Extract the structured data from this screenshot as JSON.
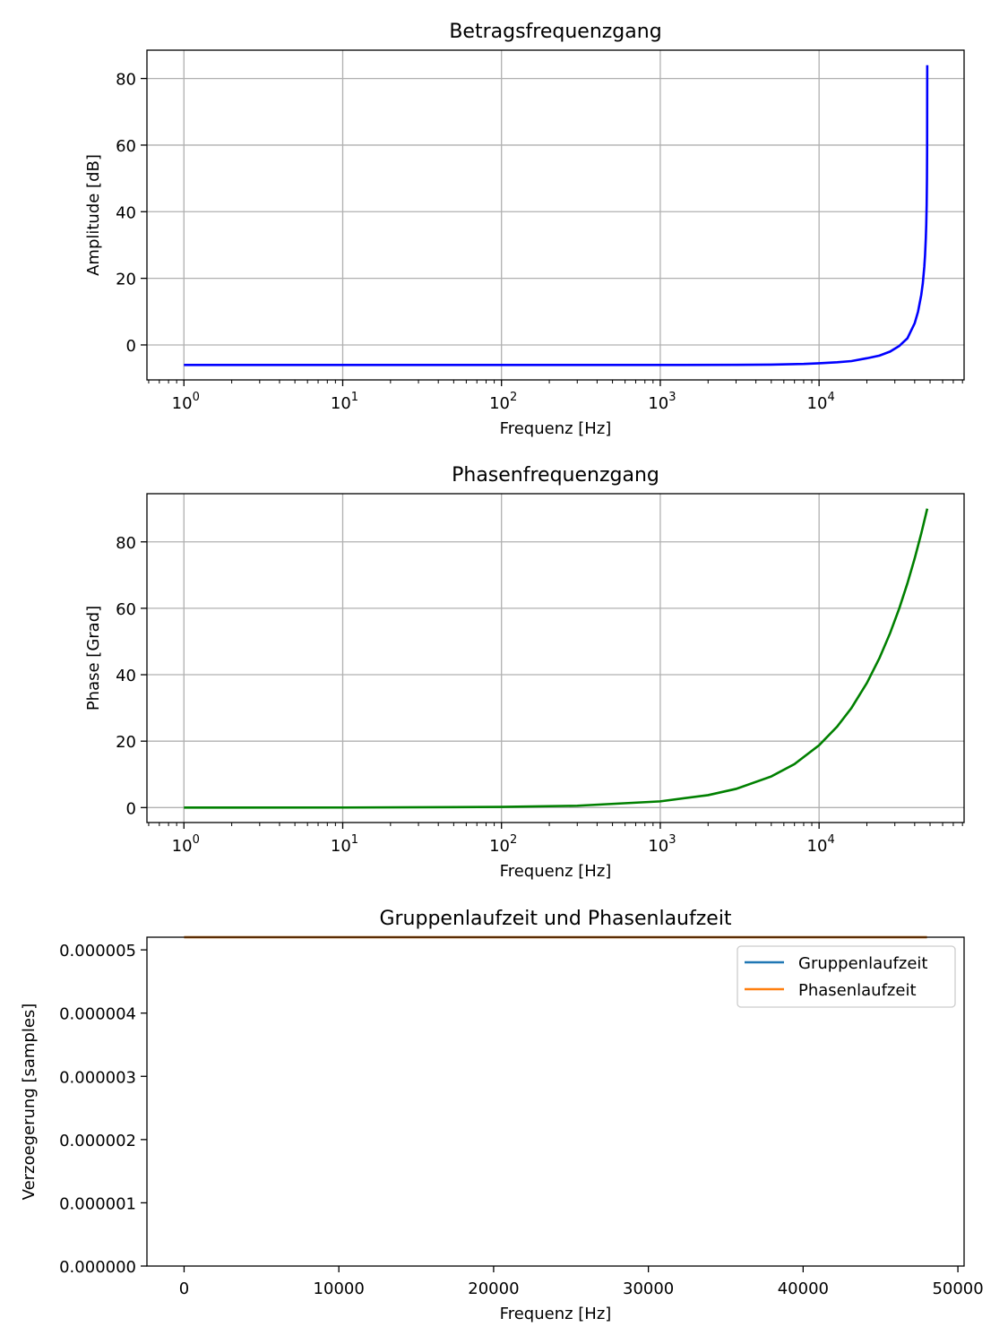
{
  "chart_data": [
    {
      "type": "line",
      "title": "Betragsfrequenzgang",
      "xlabel": "Frequenz [Hz]",
      "ylabel": "Amplitude [dB]",
      "xscale": "log",
      "grid": true,
      "xticks": [
        1,
        10,
        100,
        1000,
        10000
      ],
      "xtick_labels": [
        {
          "base": "10",
          "exp": "0"
        },
        {
          "base": "10",
          "exp": "1"
        },
        {
          "base": "10",
          "exp": "2"
        },
        {
          "base": "10",
          "exp": "3"
        },
        {
          "base": "10",
          "exp": "4"
        }
      ],
      "yticks": [
        0,
        20,
        40,
        60,
        80
      ],
      "ytick_labels": [
        "0",
        "20",
        "40",
        "60",
        "80"
      ],
      "xlim": [
        0.585,
        81900
      ],
      "ylim": [
        -10.5,
        88.5
      ],
      "series": [
        {
          "color": "#0000ff",
          "x": [
            1,
            10,
            100,
            1000,
            3000,
            5000,
            8000,
            10000,
            13000,
            16000,
            20000,
            24000,
            28000,
            32000,
            36000,
            40000,
            42000,
            44000,
            45000,
            46000,
            46500,
            47000,
            47300,
            47600,
            47800,
            47900,
            48000
          ],
          "y": [
            -6.02,
            -6.02,
            -6.02,
            -6.01,
            -5.98,
            -5.9,
            -5.7,
            -5.5,
            -5.2,
            -4.85,
            -4.0,
            -3.2,
            -2.0,
            -0.3,
            2.0,
            6.5,
            10.0,
            15.0,
            18.5,
            23.5,
            27.0,
            32.0,
            36.0,
            42.0,
            50.0,
            58.0,
            84.0
          ]
        }
      ]
    },
    {
      "type": "line",
      "title": "Phasenfrequenzgang",
      "xlabel": "Frequenz [Hz]",
      "ylabel": "Phase [Grad]",
      "xscale": "log",
      "grid": true,
      "xticks": [
        1,
        10,
        100,
        1000,
        10000
      ],
      "xtick_labels": [
        {
          "base": "10",
          "exp": "0"
        },
        {
          "base": "10",
          "exp": "1"
        },
        {
          "base": "10",
          "exp": "2"
        },
        {
          "base": "10",
          "exp": "3"
        },
        {
          "base": "10",
          "exp": "4"
        }
      ],
      "yticks": [
        0,
        20,
        40,
        60,
        80
      ],
      "ytick_labels": [
        "0",
        "20",
        "40",
        "60",
        "80"
      ],
      "xlim": [
        0.585,
        81900
      ],
      "ylim": [
        -4.5,
        94.5
      ],
      "series": [
        {
          "color": "#008000",
          "x": [
            1,
            10,
            100,
            300,
            1000,
            2000,
            3000,
            5000,
            7000,
            10000,
            13000,
            16000,
            20000,
            24000,
            28000,
            32000,
            36000,
            40000,
            44000,
            48000
          ],
          "y": [
            0.0,
            0.02,
            0.19,
            0.56,
            1.87,
            3.75,
            5.63,
            9.37,
            13.1,
            18.75,
            24.4,
            30.0,
            37.5,
            45.0,
            52.5,
            60.0,
            67.5,
            75.0,
            82.5,
            90.0
          ]
        }
      ]
    },
    {
      "type": "line",
      "title": "Gruppenlaufzeit und Phasenlaufzeit",
      "xlabel": "Frequenz [Hz]",
      "ylabel": "Verzoegerung [samples]",
      "xscale": "linear",
      "grid": false,
      "legend": "top-right",
      "xticks": [
        0,
        10000,
        20000,
        30000,
        40000,
        50000
      ],
      "xtick_labels": [
        "0",
        "10000",
        "20000",
        "30000",
        "40000",
        "50000"
      ],
      "yticks": [
        0,
        1e-06,
        2e-06,
        3e-06,
        4e-06,
        5e-06
      ],
      "ytick_labels": [
        "0.000000",
        "0.000001",
        "0.000002",
        "0.000003",
        "0.000004",
        "0.000005"
      ],
      "xlim": [
        -2400,
        50400
      ],
      "ylim": [
        0,
        5.2e-06
      ],
      "series": [
        {
          "name": "Gruppenlaufzeit",
          "color": "#1f77b4",
          "x": [
            1,
            48000
          ],
          "y": [
            5.2e-06,
            5.2e-06
          ]
        },
        {
          "name": "Phasenlaufzeit",
          "color": "#ff7f0e",
          "x": [
            1,
            48000
          ],
          "y": [
            5.2e-06,
            5.2e-06
          ]
        }
      ]
    }
  ]
}
